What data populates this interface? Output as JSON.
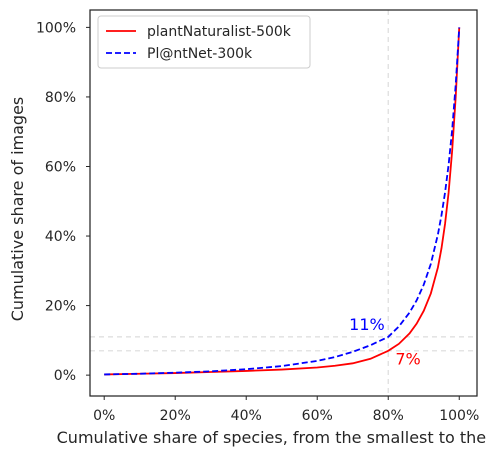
{
  "chart_data": {
    "type": "line",
    "title": "",
    "xlabel": "Cumulative share of species, from the smallest to the largest",
    "ylabel": "Cumulative share of images",
    "xlim": [
      -4,
      105
    ],
    "ylim": [
      -6,
      105
    ],
    "x_ticks": [
      0,
      20,
      40,
      60,
      80,
      100
    ],
    "x_tick_labels": [
      "0%",
      "20%",
      "40%",
      "60%",
      "80%",
      "100%"
    ],
    "y_ticks": [
      0,
      20,
      40,
      60,
      80,
      100
    ],
    "y_tick_labels": [
      "0%",
      "20%",
      "40%",
      "60%",
      "80%",
      "100%"
    ],
    "grid": false,
    "legend_position": "top-left",
    "series": [
      {
        "name": "plantNaturalist-500k",
        "color": "#ff0000",
        "linestyle": "solid",
        "x": [
          0,
          10,
          20,
          30,
          40,
          50,
          60,
          65,
          70,
          75,
          80,
          83,
          86,
          88,
          90,
          92,
          94,
          95,
          96,
          97,
          98,
          99,
          100
        ],
        "y": [
          0.2,
          0.4,
          0.6,
          0.9,
          1.2,
          1.6,
          2.2,
          2.7,
          3.4,
          4.7,
          7.0,
          9.0,
          12.0,
          14.8,
          18.5,
          23.5,
          31.0,
          36.5,
          43.5,
          52.5,
          64.5,
          80.0,
          100
        ]
      },
      {
        "name": "Pl@ntNet-300k",
        "color": "#0000ff",
        "linestyle": "dashed",
        "x": [
          0,
          10,
          20,
          30,
          40,
          50,
          60,
          65,
          70,
          75,
          80,
          83,
          86,
          88,
          90,
          92,
          94,
          95,
          96,
          97,
          98,
          99,
          100
        ],
        "y": [
          0.2,
          0.4,
          0.7,
          1.1,
          1.7,
          2.6,
          4.1,
          5.2,
          6.7,
          8.6,
          11.0,
          14.0,
          18.0,
          21.5,
          26.0,
          32.0,
          40.5,
          46.0,
          52.5,
          60.5,
          70.5,
          83.5,
          100
        ]
      }
    ],
    "reference_lines": {
      "vertical_x": 80,
      "horizontal_y": [
        11,
        7
      ],
      "color": "#dcdcdc"
    },
    "annotations": [
      {
        "text": "11%",
        "x": 69,
        "y": 13,
        "color": "#0000ff"
      },
      {
        "text": "7%",
        "x": 82,
        "y": 3,
        "color": "#ff0000"
      }
    ]
  }
}
